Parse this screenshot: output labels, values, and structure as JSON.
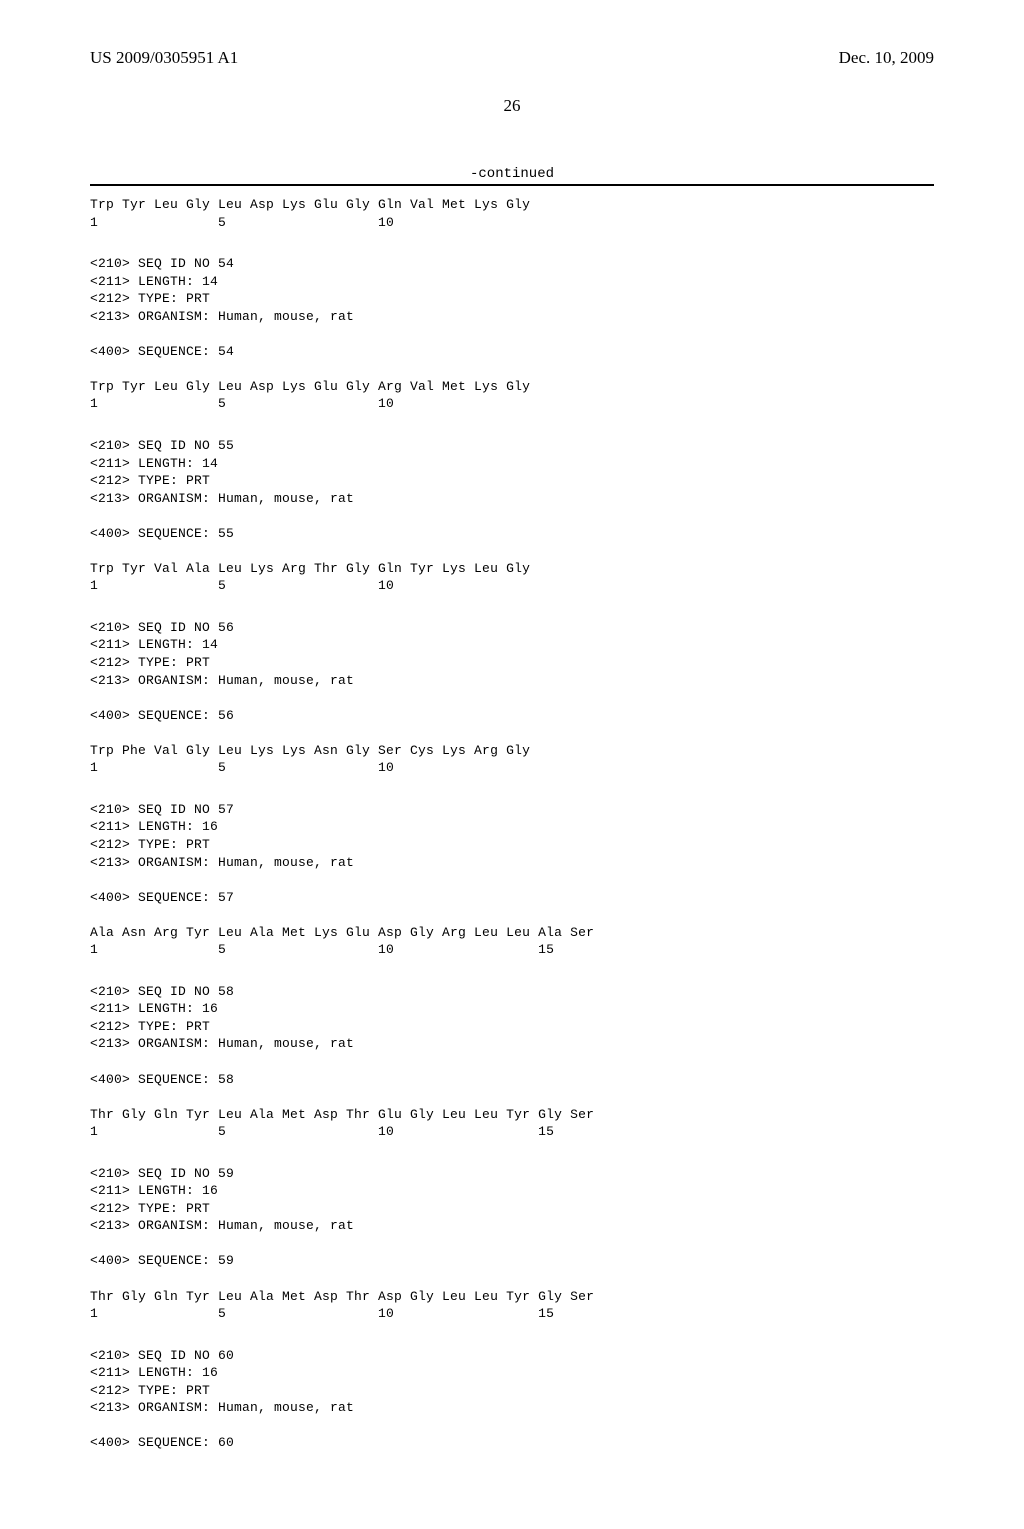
{
  "header": {
    "left": "US 2009/0305951 A1",
    "right": "Dec. 10, 2009"
  },
  "page_number": "26",
  "continued": "-continued",
  "sequences": [
    {
      "aa": "Trp Tyr Leu Gly Leu Asp Lys Glu Gly Gln Val Met Lys Gly",
      "nums": "1               5                   10"
    },
    {
      "meta": [
        "<210> SEQ ID NO 54",
        "<211> LENGTH: 14",
        "<212> TYPE: PRT",
        "<213> ORGANISM: Human, mouse, rat"
      ],
      "seq_label": "<400> SEQUENCE: 54",
      "aa": "Trp Tyr Leu Gly Leu Asp Lys Glu Gly Arg Val Met Lys Gly",
      "nums": "1               5                   10"
    },
    {
      "meta": [
        "<210> SEQ ID NO 55",
        "<211> LENGTH: 14",
        "<212> TYPE: PRT",
        "<213> ORGANISM: Human, mouse, rat"
      ],
      "seq_label": "<400> SEQUENCE: 55",
      "aa": "Trp Tyr Val Ala Leu Lys Arg Thr Gly Gln Tyr Lys Leu Gly",
      "nums": "1               5                   10"
    },
    {
      "meta": [
        "<210> SEQ ID NO 56",
        "<211> LENGTH: 14",
        "<212> TYPE: PRT",
        "<213> ORGANISM: Human, mouse, rat"
      ],
      "seq_label": "<400> SEQUENCE: 56",
      "aa": "Trp Phe Val Gly Leu Lys Lys Asn Gly Ser Cys Lys Arg Gly",
      "nums": "1               5                   10"
    },
    {
      "meta": [
        "<210> SEQ ID NO 57",
        "<211> LENGTH: 16",
        "<212> TYPE: PRT",
        "<213> ORGANISM: Human, mouse, rat"
      ],
      "seq_label": "<400> SEQUENCE: 57",
      "aa": "Ala Asn Arg Tyr Leu Ala Met Lys Glu Asp Gly Arg Leu Leu Ala Ser",
      "nums": "1               5                   10                  15"
    },
    {
      "meta": [
        "<210> SEQ ID NO 58",
        "<211> LENGTH: 16",
        "<212> TYPE: PRT",
        "<213> ORGANISM: Human, mouse, rat"
      ],
      "seq_label": "<400> SEQUENCE: 58",
      "aa": "Thr Gly Gln Tyr Leu Ala Met Asp Thr Glu Gly Leu Leu Tyr Gly Ser",
      "nums": "1               5                   10                  15"
    },
    {
      "meta": [
        "<210> SEQ ID NO 59",
        "<211> LENGTH: 16",
        "<212> TYPE: PRT",
        "<213> ORGANISM: Human, mouse, rat"
      ],
      "seq_label": "<400> SEQUENCE: 59",
      "aa": "Thr Gly Gln Tyr Leu Ala Met Asp Thr Asp Gly Leu Leu Tyr Gly Ser",
      "nums": "1               5                   10                  15"
    },
    {
      "meta": [
        "<210> SEQ ID NO 60",
        "<211> LENGTH: 16",
        "<212> TYPE: PRT",
        "<213> ORGANISM: Human, mouse, rat"
      ],
      "seq_label": "<400> SEQUENCE: 60"
    }
  ]
}
